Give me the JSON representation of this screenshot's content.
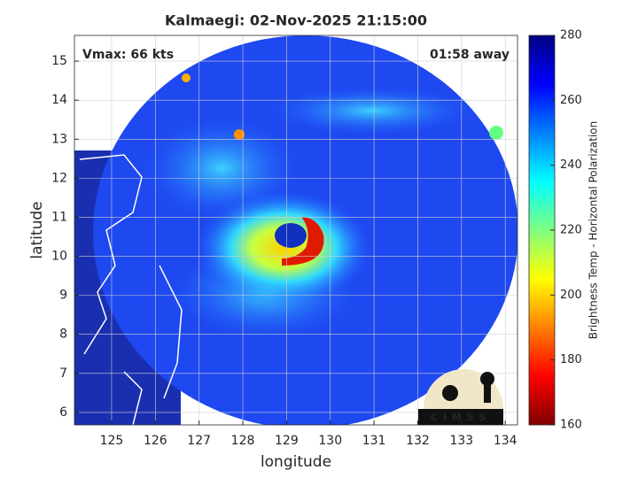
{
  "chart_data": {
    "type": "map",
    "title": "Kalmaegi: 02-Nov-2025 21:15:00",
    "annotations": [
      "Vmax: 66 kts",
      "01:58 away"
    ],
    "xlabel": "longitude",
    "ylabel": "latitude",
    "xlim": [
      124.15,
      134.28
    ],
    "xticks": [
      125,
      126,
      127,
      128,
      129,
      130,
      131,
      132,
      133,
      134
    ],
    "ylim": [
      5.68,
      15.66
    ],
    "yticks": [
      6,
      7,
      8,
      9,
      10,
      11,
      12,
      13,
      14,
      15
    ],
    "grid": true,
    "colorbar": {
      "label": "Brightness Temp - Horizontal Polarization",
      "lim": [
        160,
        280
      ],
      "ticks": [
        160,
        180,
        200,
        220,
        240,
        260,
        280
      ],
      "colors": [
        "#800000",
        "#ff0000",
        "#ff8000",
        "#ffff00",
        "#80ff80",
        "#00ffff",
        "#0080ff",
        "#0000ff",
        "#000080"
      ]
    },
    "logo": "CIMSS"
  }
}
